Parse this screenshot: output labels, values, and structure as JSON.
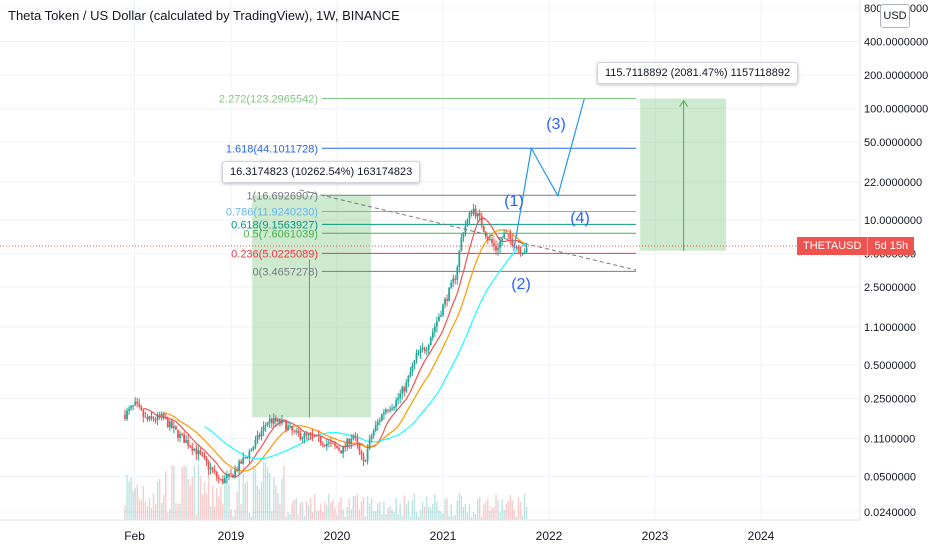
{
  "header": {
    "title": "Theta Token / US Dollar (calculated by TradingView), 1W, BINANCE",
    "currency_button": "USD"
  },
  "price_tag": {
    "symbol": "THETAUSD",
    "countdown": "5d 15h",
    "color": "#ef5350"
  },
  "callouts": {
    "projection_top": "115.7118892 (2081.47%) 1157118892",
    "projection_left": "16.3174823 (10262.54%) 163174823"
  },
  "wave_labels": [
    "(1)",
    "(2)",
    "(3)",
    "(4)"
  ],
  "chart_data": {
    "type": "line",
    "scale": "log",
    "y_ticks": [
      "800.0000000",
      "400.0000000",
      "200.0000000",
      "100.0000000",
      "50.0000000",
      "22.0000000",
      "10.0000000",
      "5.0000000",
      "2.5000000",
      "1.1000000",
      "0.5000000",
      "0.2500000",
      "0.1100000",
      "0.0500000",
      "0.0240000"
    ],
    "y_tick_values": [
      800,
      400,
      200,
      100,
      50,
      22,
      10,
      5,
      2.5,
      1.1,
      0.5,
      0.25,
      0.11,
      0.05,
      0.024
    ],
    "x_ticks": [
      "Feb",
      "2019",
      "2020",
      "2021",
      "2022",
      "2023",
      "2024"
    ],
    "fib_levels": [
      {
        "label": "2.272(123.2965542)",
        "price": 123.2965542,
        "color": "#81c784"
      },
      {
        "label": "1.618(44.1011728)",
        "price": 44.1011728,
        "color": "#2962ff"
      },
      {
        "label": "1(16.6926907)",
        "price": 16.6926907,
        "color": "#787b86"
      },
      {
        "label": "0.786(11.9240230)",
        "price": 11.924023,
        "color": "#64b5f6"
      },
      {
        "label": "0.618(9.1563927)",
        "price": 9.1563927,
        "color": "#089981"
      },
      {
        "label": "0.5(7.6061039)",
        "price": 7.6061039,
        "color": "#4caf50"
      },
      {
        "label": "0.236(5.0225089)",
        "price": 5.0225089,
        "color": "#f23645"
      },
      {
        "label": "0(3.4657278)",
        "price": 3.4657278,
        "color": "#787b86"
      }
    ],
    "wave_path": [
      {
        "date": "2021-09",
        "price": 5.3
      },
      {
        "date": "2021-11",
        "price": 44
      },
      {
        "date": "2022-02",
        "price": 16.5
      },
      {
        "date": "2022-05",
        "price": 123
      }
    ],
    "series": [
      {
        "color": "#26a69a"
      },
      {
        "color": "#ef5350"
      },
      {
        "color": "#ff9800"
      },
      {
        "color": "#18ffff"
      }
    ]
  }
}
